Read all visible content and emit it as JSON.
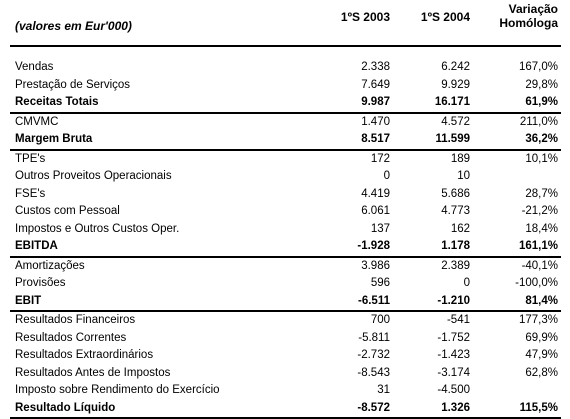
{
  "header": {
    "unit": "(valores em Eur'000)",
    "col1": "1ºS 2003",
    "col2": "1ºS 2004",
    "col3_line1": "Variação",
    "col3_line2": "Homóloga"
  },
  "rows": [
    {
      "label": "Vendas",
      "s2003": "2.338",
      "s2004": "6.242",
      "var": "167,0%"
    },
    {
      "label": "Prestação de Serviços",
      "s2003": "7.649",
      "s2004": "9.929",
      "var": "29,8%"
    },
    {
      "label": "Receitas Totais",
      "s2003": "9.987",
      "s2004": "16.171",
      "var": "61,9%"
    },
    {
      "label": "CMVMC",
      "s2003": "1.470",
      "s2004": "4.572",
      "var": "211,0%"
    },
    {
      "label": "Margem Bruta",
      "s2003": "8.517",
      "s2004": "11.599",
      "var": "36,2%"
    },
    {
      "label": "TPE's",
      "s2003": "172",
      "s2004": "189",
      "var": "10,1%"
    },
    {
      "label": "Outros Proveitos Operacionais",
      "s2003": "0",
      "s2004": "10",
      "var": ""
    },
    {
      "label": "FSE's",
      "s2003": "4.419",
      "s2004": "5.686",
      "var": "28,7%"
    },
    {
      "label": "Custos com Pessoal",
      "s2003": "6.061",
      "s2004": "4.773",
      "var": "-21,2%"
    },
    {
      "label": "Impostos e Outros Custos Oper.",
      "s2003": "137",
      "s2004": "162",
      "var": "18,4%"
    },
    {
      "label": "EBITDA",
      "s2003": "-1.928",
      "s2004": "1.178",
      "var": "161,1%"
    },
    {
      "label": "Amortizações",
      "s2003": "3.986",
      "s2004": "2.389",
      "var": "-40,1%"
    },
    {
      "label": "Provisões",
      "s2003": "596",
      "s2004": "0",
      "var": "-100,0%"
    },
    {
      "label": "EBIT",
      "s2003": "-6.511",
      "s2004": "-1.210",
      "var": "81,4%"
    },
    {
      "label": "Resultados Financeiros",
      "s2003": "700",
      "s2004": "-541",
      "var": "177,3%"
    },
    {
      "label": "Resultados Correntes",
      "s2003": "-5.811",
      "s2004": "-1.752",
      "var": "69,9%"
    },
    {
      "label": "Resultados Extraordinários",
      "s2003": "-2.732",
      "s2004": "-1.423",
      "var": "47,9%"
    },
    {
      "label": "Resultados Antes de Impostos",
      "s2003": "-8.543",
      "s2004": "-3.174",
      "var": "62,8%"
    },
    {
      "label": "Imposto sobre Rendimento do Exercício",
      "s2003": "31",
      "s2004": "-4.500",
      "var": ""
    },
    {
      "label": "Resultado Líquido",
      "s2003": "-8.572",
      "s2004": "1.326",
      "var": "115,5%"
    }
  ]
}
